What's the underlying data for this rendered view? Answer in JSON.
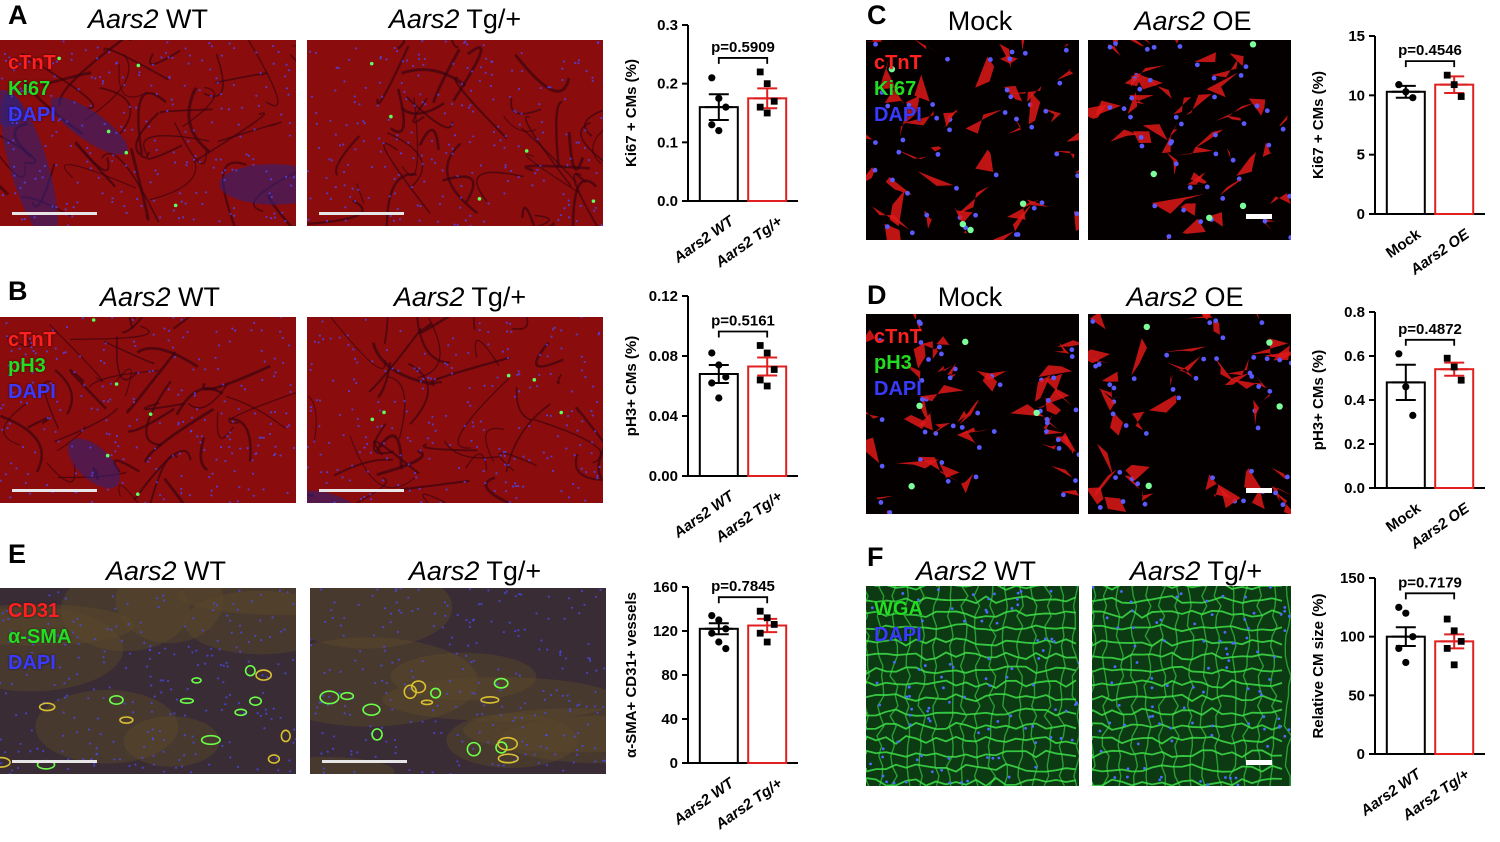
{
  "panels": [
    {
      "id": "A",
      "letter": "A",
      "images": [
        {
          "title_italic": "Aars2",
          "title_rest": " WT",
          "stains": [
            {
              "text": "cTnT",
              "color": "#ff2020"
            },
            {
              "text": "Ki67",
              "color": "#22dd22"
            },
            {
              "text": "DAPI",
              "color": "#3a3aff"
            }
          ],
          "style": "tissue",
          "scalebar": true
        },
        {
          "title_italic": "Aars2",
          "title_rest": " Tg/+",
          "stains": [],
          "style": "tissue",
          "scalebar": true
        }
      ]
    },
    {
      "id": "B",
      "letter": "B",
      "images": [
        {
          "title_italic": "Aars2",
          "title_rest": " WT",
          "stains": [
            {
              "text": "cTnT",
              "color": "#ff2020"
            },
            {
              "text": "pH3",
              "color": "#22dd22"
            },
            {
              "text": "DAPI",
              "color": "#3a3aff"
            }
          ],
          "style": "tissue",
          "scalebar": true
        },
        {
          "title_italic": "Aars2",
          "title_rest": " Tg/+",
          "stains": [],
          "style": "tissue",
          "scalebar": true
        }
      ]
    },
    {
      "id": "E",
      "letter": "E",
      "images": [
        {
          "title_italic": "Aars2",
          "title_rest": " WT",
          "stains": [
            {
              "text": "CD31",
              "color": "#ff2020"
            },
            {
              "text": "α-SMA",
              "color": "#22dd22"
            },
            {
              "text": "DAPI",
              "color": "#3a3aff"
            }
          ],
          "style": "vessel",
          "scalebar": true
        },
        {
          "title_italic": "Aars2",
          "title_rest": " Tg/+",
          "stains": [],
          "style": "vessel",
          "scalebar": true
        }
      ]
    },
    {
      "id": "C",
      "letter": "C",
      "images": [
        {
          "title_italic": "",
          "title_rest": "Mock",
          "stains": [
            {
              "text": "cTnT",
              "color": "#ff2020"
            },
            {
              "text": "Ki67",
              "color": "#22dd22"
            },
            {
              "text": "DAPI",
              "color": "#3a3aff"
            }
          ],
          "style": "cells",
          "scalebar": false
        },
        {
          "title_italic": "Aars2",
          "title_rest": " OE",
          "stains": [],
          "style": "cells",
          "scalebar": true
        }
      ]
    },
    {
      "id": "D",
      "letter": "D",
      "images": [
        {
          "title_italic": "",
          "title_rest": "Mock",
          "stains": [
            {
              "text": "cTnT",
              "color": "#ff2020"
            },
            {
              "text": "pH3",
              "color": "#22dd22"
            },
            {
              "text": "DAPI",
              "color": "#3a3aff"
            }
          ],
          "style": "cells",
          "scalebar": false
        },
        {
          "title_italic": "Aars2",
          "title_rest": " OE",
          "stains": [],
          "style": "cells",
          "scalebar": true
        }
      ]
    },
    {
      "id": "F",
      "letter": "F",
      "images": [
        {
          "title_italic": "Aars2",
          "title_rest": " WT",
          "stains": [
            {
              "text": "WGA",
              "color": "#22dd22"
            },
            {
              "text": "DAPI",
              "color": "#3a3aff"
            }
          ],
          "style": "wga",
          "scalebar": false
        },
        {
          "title_italic": "Aars2",
          "title_rest": " Tg/+",
          "stains": [],
          "style": "wga",
          "scalebar": true
        }
      ]
    }
  ],
  "chart_data": [
    {
      "panel": "A",
      "type": "bar",
      "ylabel": "Ki67 + CMs (%)",
      "categories": [
        "Aars2 WT",
        "Aars2 Tg/+"
      ],
      "ylim": [
        0,
        0.3
      ],
      "yticks": [
        "0.0",
        "0.1",
        "0.2",
        "0.3"
      ],
      "values": [
        0.16,
        0.175
      ],
      "sem": [
        0.022,
        0.017
      ],
      "points": [
        [
          0.21,
          0.175,
          0.16,
          0.13,
          0.12
        ],
        [
          0.22,
          0.2,
          0.17,
          0.16,
          0.15
        ]
      ],
      "pvalue": "p=0.5909",
      "colors": [
        "#000000",
        "#e02020"
      ]
    },
    {
      "panel": "B",
      "type": "bar",
      "ylabel": "pH3+ CMs (%)",
      "categories": [
        "Aars2 WT",
        "Aars2 Tg/+"
      ],
      "ylim": [
        0,
        0.12
      ],
      "yticks": [
        "0.00",
        "0.04",
        "0.08",
        "0.12"
      ],
      "values": [
        0.068,
        0.073
      ],
      "sem": [
        0.006,
        0.006
      ],
      "points": [
        [
          0.082,
          0.074,
          0.066,
          0.062,
          0.052
        ],
        [
          0.087,
          0.082,
          0.071,
          0.064,
          0.06
        ]
      ],
      "pvalue": "p=0.5161",
      "colors": [
        "#000000",
        "#e02020"
      ]
    },
    {
      "panel": "E",
      "type": "bar",
      "ylabel": "α-SMA+ CD31+ vessels",
      "categories": [
        "Aars2 WT",
        "Aars2 Tg/+"
      ],
      "ylim": [
        0,
        160
      ],
      "yticks": [
        "0",
        "40",
        "80",
        "120",
        "160"
      ],
      "values": [
        122,
        125
      ],
      "sem": [
        5,
        6
      ],
      "points": [
        [
          134,
          130,
          122,
          118,
          110,
          104
        ],
        [
          138,
          132,
          126,
          118,
          110
        ]
      ],
      "pvalue": "p=0.7845",
      "colors": [
        "#000000",
        "#e02020"
      ]
    },
    {
      "panel": "C",
      "type": "bar",
      "ylabel": "Ki67 + CMs (%)",
      "categories": [
        "Mock",
        "Aars2 OE"
      ],
      "ylim": [
        0,
        15
      ],
      "yticks": [
        "0",
        "5",
        "10",
        "15"
      ],
      "values": [
        10.3,
        10.9
      ],
      "sem": [
        0.5,
        0.7
      ],
      "points": [
        [
          10.9,
          10.3,
          9.8
        ],
        [
          11.7,
          10.9,
          9.9
        ]
      ],
      "pvalue": "p=0.4546",
      "colors": [
        "#000000",
        "#e02020"
      ]
    },
    {
      "panel": "D",
      "type": "bar",
      "ylabel": "pH3+ CMs (%)",
      "categories": [
        "Mock",
        "Aars2 OE"
      ],
      "ylim": [
        0,
        0.8
      ],
      "yticks": [
        "0.0",
        "0.2",
        "0.4",
        "0.6",
        "0.8"
      ],
      "values": [
        0.48,
        0.54
      ],
      "sem": [
        0.08,
        0.03
      ],
      "points": [
        [
          0.61,
          0.46,
          0.33
        ],
        [
          0.59,
          0.55,
          0.49
        ]
      ],
      "pvalue": "p=0.4872",
      "colors": [
        "#000000",
        "#e02020"
      ]
    },
    {
      "panel": "F",
      "type": "bar",
      "ylabel": "Relative CM size (%)",
      "categories": [
        "Aars2 WT",
        "Aars2 Tg/+"
      ],
      "ylim": [
        0,
        150
      ],
      "yticks": [
        "0",
        "50",
        "100",
        "150"
      ],
      "values": [
        100,
        96
      ],
      "sem": [
        8,
        6
      ],
      "points": [
        [
          125,
          120,
          100,
          90,
          78
        ],
        [
          115,
          105,
          96,
          90,
          76
        ]
      ],
      "pvalue": "p=0.7179",
      "colors": [
        "#000000",
        "#e02020"
      ]
    }
  ]
}
